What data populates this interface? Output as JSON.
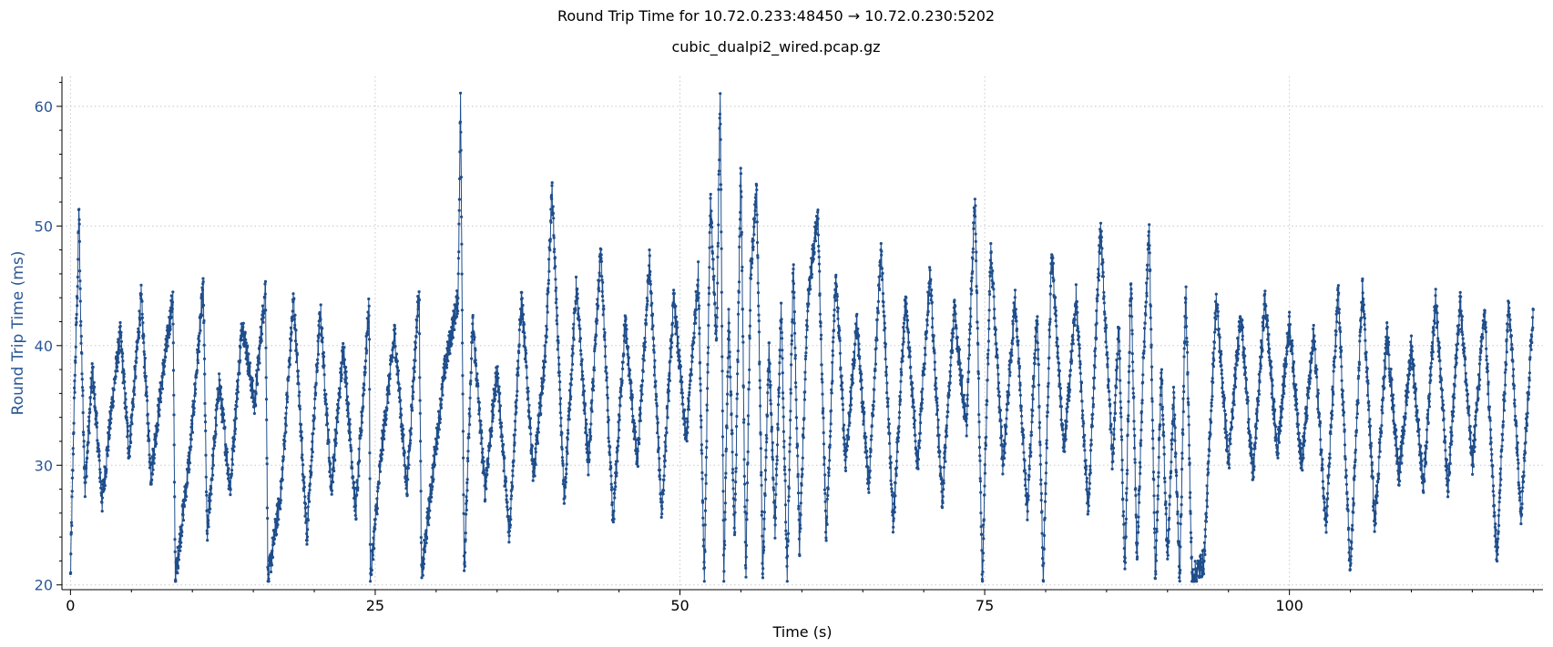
{
  "chart_data": {
    "type": "line",
    "title": "Round Trip Time for 10.72.0.233:48450 → 10.72.0.230:5202",
    "subtitle": "cubic_dualpi2_wired.pcap.gz",
    "xlabel": "Time (s)",
    "ylabel": "Round Trip Time (ms)",
    "xlim": [
      -0.7,
      120.8
    ],
    "ylim": [
      19.6,
      62.5
    ],
    "xticks": [
      0,
      25,
      50,
      75,
      100
    ],
    "yticks": [
      20,
      30,
      40,
      50,
      60
    ],
    "grid": true,
    "colors": {
      "series": "#1f4e8c",
      "ylabel": "#2b5797",
      "grid": "#c8c8c8"
    },
    "series": [
      {
        "x": [
          0.0,
          0.3,
          0.6,
          0.7,
          0.8,
          1.2,
          1.8,
          2.6,
          3.5,
          4.1,
          4.8,
          5.8,
          6.6,
          7.5,
          8.4,
          8.6,
          9.8,
          10.9,
          11.2,
          12.2,
          13.1,
          14.1,
          15.1,
          16.0,
          16.2,
          17.3,
          18.3,
          19.4,
          20.5,
          21.4,
          22.4,
          23.4,
          24.5,
          24.6,
          25.6,
          26.6,
          27.6,
          28.6,
          28.8,
          29.8,
          30.7,
          31.8,
          32.0,
          32.3,
          33.0,
          34.0,
          35.0,
          36.0,
          37.0,
          38.0,
          39.0,
          39.5,
          40.5,
          41.5,
          42.5,
          43.5,
          44.5,
          45.5,
          46.5,
          47.5,
          48.5,
          49.5,
          50.5,
          51.5,
          52.0,
          52.5,
          53.0,
          53.3,
          53.6,
          54.0,
          54.5,
          55.0,
          55.4,
          55.8,
          56.3,
          56.8,
          57.3,
          57.8,
          58.3,
          58.8,
          59.3,
          59.8,
          60.5,
          61.3,
          62.0,
          62.8,
          63.6,
          64.5,
          65.5,
          66.5,
          67.5,
          68.5,
          69.5,
          70.5,
          71.5,
          72.5,
          73.5,
          74.2,
          74.8,
          75.5,
          76.5,
          77.5,
          78.5,
          79.3,
          79.8,
          80.5,
          81.5,
          82.5,
          83.5,
          84.5,
          85.5,
          86.0,
          86.5,
          87.0,
          87.5,
          88.0,
          88.5,
          89.0,
          89.5,
          90.0,
          90.5,
          91.0,
          91.5,
          92.0,
          93.0,
          94.0,
          95.0,
          96.0,
          97.0,
          98.0,
          99.0,
          100.0,
          101.0,
          102.0,
          103.0,
          104.0,
          105.0,
          106.0,
          107.0,
          108.0,
          109.0,
          110.0,
          111.0,
          112.0,
          113.0,
          114.0,
          115.0,
          116.0,
          117.0,
          118.0,
          119.0,
          120.0
        ],
        "y": [
          20.6,
          35.0,
          46.0,
          52.0,
          44.0,
          28.0,
          38.0,
          27.0,
          36.0,
          41.0,
          31.0,
          44.0,
          29.0,
          37.0,
          44.0,
          20.4,
          31.0,
          45.0,
          24.0,
          37.0,
          28.0,
          42.0,
          35.0,
          45.0,
          20.3,
          28.0,
          44.0,
          24.0,
          43.0,
          28.0,
          40.0,
          26.0,
          43.5,
          20.5,
          32.0,
          41.0,
          28.0,
          45.0,
          20.6,
          30.0,
          38.0,
          44.0,
          60.8,
          21.0,
          42.0,
          28.0,
          38.0,
          24.0,
          44.0,
          29.0,
          40.0,
          53.0,
          27.0,
          45.0,
          30.0,
          48.0,
          25.0,
          42.0,
          30.0,
          47.0,
          26.0,
          44.0,
          32.0,
          46.0,
          20.5,
          52.0,
          40.0,
          61.7,
          20.5,
          42.0,
          24.0,
          55.0,
          20.5,
          46.0,
          53.0,
          20.5,
          40.0,
          25.0,
          43.0,
          20.5,
          47.0,
          23.0,
          44.0,
          51.0,
          24.0,
          46.0,
          30.0,
          42.0,
          28.0,
          48.0,
          25.0,
          44.0,
          30.0,
          46.0,
          27.0,
          43.0,
          33.0,
          52.8,
          20.5,
          48.0,
          30.0,
          44.0,
          26.0,
          43.0,
          20.5,
          48.0,
          31.0,
          44.0,
          26.0,
          50.0,
          30.0,
          42.0,
          20.5,
          46.0,
          22.0,
          38.0,
          49.6,
          20.5,
          38.0,
          22.0,
          36.0,
          20.5,
          45.0,
          20.5,
          22.0,
          44.0,
          30.0,
          43.0,
          29.0,
          44.0,
          31.0,
          42.0,
          30.0,
          41.0,
          25.0,
          44.5,
          21.0,
          45.0,
          25.0,
          41.0,
          29.0,
          40.0,
          28.0,
          44.0,
          28.0,
          44.0,
          30.0,
          43.0,
          22.0,
          44.0,
          26.0,
          43.0
        ]
      }
    ]
  }
}
